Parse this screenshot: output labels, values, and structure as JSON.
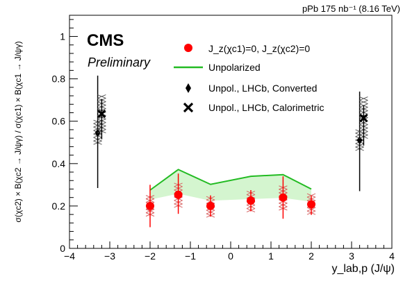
{
  "chart_data": {
    "type": "scatter",
    "header_right": "pPb 175 nb⁻¹ (8.16 TeV)",
    "cms_label": "CMS",
    "preliminary_label": "Preliminary",
    "xlabel": "y_lab,p (J/ψ)",
    "ylabel": "σ(χc2) × B(χc2 → J/ψγ) / σ(χc1) × B(χc1 → J/ψγ)",
    "xlim": [
      -4,
      4
    ],
    "ylim": [
      0,
      1.1
    ],
    "x_major_ticks": [
      -4,
      -3,
      -2,
      -1,
      0,
      1,
      2,
      3,
      4
    ],
    "y_major_ticks": [
      0,
      0.2,
      0.4,
      0.6,
      0.8,
      1
    ],
    "x_tick_labels": [
      "−4",
      "−3",
      "−2",
      "−1",
      "0",
      "1",
      "2",
      "3",
      "4"
    ],
    "y_tick_labels": [
      "0",
      "0.2",
      "0.4",
      "0.6",
      "0.8",
      "1"
    ],
    "legend": {
      "placement": "top-right",
      "entries": [
        {
          "marker": "red-circle",
          "label": "J_z(χc1)=0, J_z(χc2)=0"
        },
        {
          "marker": "green-line",
          "label": "Unpolarized"
        },
        {
          "marker": "diamond",
          "label": "Unpol., LHCb, Converted"
        },
        {
          "marker": "cross",
          "label": "Unpol., LHCb, Calorimetric"
        }
      ]
    },
    "series": [
      {
        "marker": "red-circle",
        "color": "#ff0000",
        "x": [
          -2.0,
          -1.3,
          -0.5,
          0.5,
          1.3,
          2.0
        ],
        "y": [
          0.2,
          0.253,
          0.2,
          0.225,
          0.24,
          0.208
        ],
        "yerr_low": [
          0.1,
          0.09,
          0.05,
          0.05,
          0.1,
          0.05
        ],
        "yerr_high": [
          0.1,
          0.1,
          0.05,
          0.05,
          0.1,
          0.04
        ],
        "syst_half": [
          0.05,
          0.055,
          0.045,
          0.045,
          0.055,
          0.05
        ]
      },
      {
        "marker": "diamond",
        "color": "#000000",
        "x": [
          -3.3,
          3.2
        ],
        "y": [
          0.545,
          0.51
        ],
        "yerr_low": [
          0.26,
          0.24
        ],
        "yerr_high": [
          0.27,
          0.23
        ],
        "syst_half": [
          0.06,
          0.05
        ]
      },
      {
        "marker": "cross",
        "color": "#000000",
        "x": [
          -3.2,
          3.3
        ],
        "y": [
          0.635,
          0.615
        ],
        "yerr_low": [
          0.12,
          0.13
        ],
        "yerr_high": [
          0.07,
          0.06
        ],
        "syst_half": [
          0.09,
          0.1
        ]
      }
    ],
    "unpolarized_band": {
      "color": "#22bb22",
      "x": [
        -2.0,
        -1.3,
        -0.5,
        0.5,
        1.3,
        2.0
      ],
      "upper": [
        0.275,
        0.372,
        0.302,
        0.34,
        0.348,
        0.28
      ],
      "lower": [
        0.23,
        0.258,
        0.225,
        0.233,
        0.238,
        0.22
      ]
    }
  }
}
